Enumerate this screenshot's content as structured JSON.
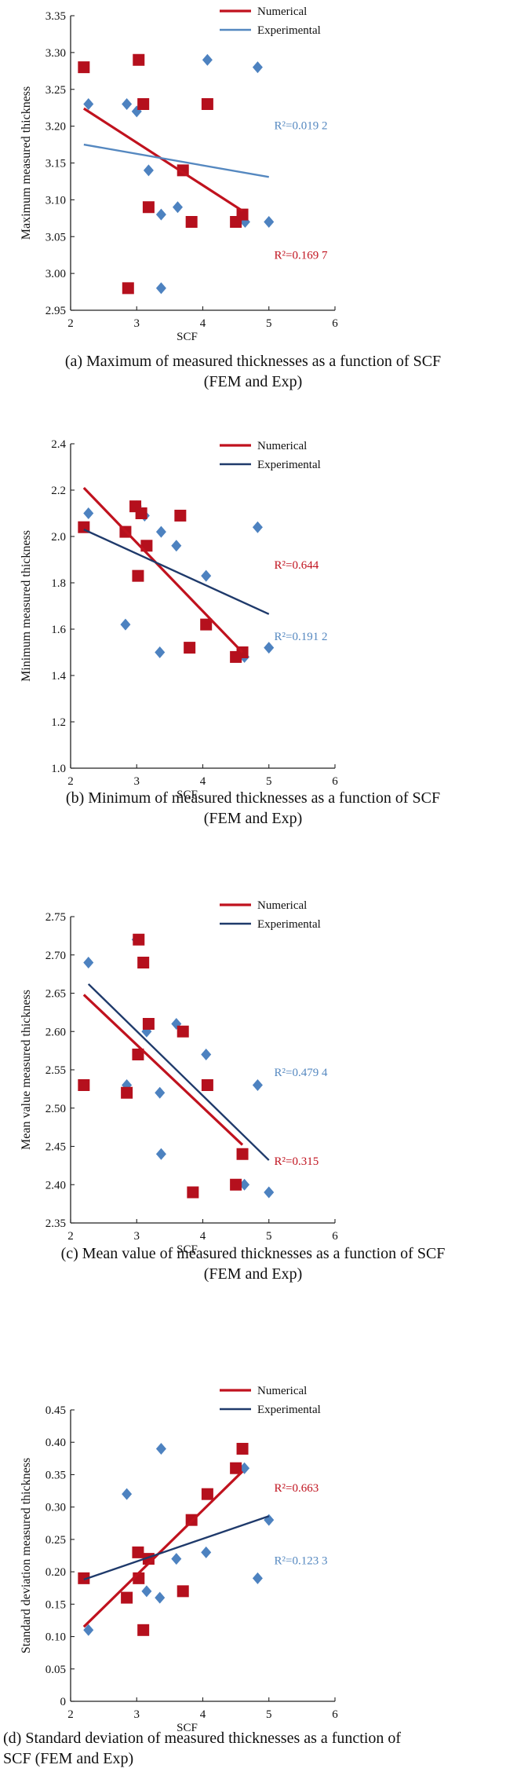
{
  "colors": {
    "numerical": "#c0121e",
    "numerical_marker": "#b5101d",
    "experimental_a": "#5588c0",
    "experimental_dark": "#1f3a6b",
    "experimental_marker": "#4d82c0",
    "axis": "#222222"
  },
  "chart_data": [
    {
      "id": "a",
      "type": "scatter",
      "xlabel": "SCF",
      "ylabel": "Maximum measured thickness",
      "xlim": [
        2,
        6
      ],
      "ylim": [
        2.95,
        3.35
      ],
      "xticks": [
        "2",
        "3",
        "4",
        "5",
        "6"
      ],
      "yticks": [
        "2.95",
        "3.00",
        "3.05",
        "3.10",
        "3.15",
        "3.20",
        "3.25",
        "3.30",
        "3.35"
      ],
      "caption": [
        "(a) Maximum of measured thicknesses as a function of SCF",
        "(FEM and Exp)"
      ],
      "series": [
        {
          "name": "Numerical",
          "marker": "square",
          "color_key": "numerical",
          "points": [
            [
              2.2,
              3.28
            ],
            [
              2.87,
              2.98
            ],
            [
              3.03,
              3.29
            ],
            [
              3.1,
              3.23
            ],
            [
              3.18,
              3.09
            ],
            [
              3.7,
              3.14
            ],
            [
              3.83,
              3.07
            ],
            [
              4.07,
              3.23
            ],
            [
              4.5,
              3.07
            ],
            [
              4.6,
              3.08
            ]
          ],
          "trend": [
            [
              2.2,
              3.224
            ],
            [
              4.6,
              3.085
            ]
          ],
          "r2": "R²=0.169 7"
        },
        {
          "name": "Experimental",
          "marker": "diamond",
          "color_key": "experimental_a",
          "points": [
            [
              2.27,
              3.23
            ],
            [
              2.85,
              3.23
            ],
            [
              3.0,
              3.22
            ],
            [
              3.18,
              3.14
            ],
            [
              3.37,
              3.08
            ],
            [
              3.37,
              2.98
            ],
            [
              3.62,
              3.09
            ],
            [
              4.07,
              3.29
            ],
            [
              4.64,
              3.07
            ],
            [
              4.83,
              3.28
            ],
            [
              5.0,
              3.07
            ]
          ],
          "trend": [
            [
              2.2,
              3.175
            ],
            [
              5.0,
              3.131
            ]
          ],
          "r2": "R²=0.019 2"
        }
      ]
    },
    {
      "id": "b",
      "type": "scatter",
      "xlabel": "SCF",
      "ylabel": "Minimum measured thickness",
      "xlim": [
        2,
        6
      ],
      "ylim": [
        1.0,
        2.4
      ],
      "xticks": [
        "2",
        "3",
        "4",
        "5",
        "6"
      ],
      "yticks": [
        "1.0",
        "1.2",
        "1.4",
        "1.6",
        "1.8",
        "2.0",
        "2.2",
        "2.4"
      ],
      "caption": [
        "(b) Minimum of measured thicknesses as a function of SCF",
        "(FEM and Exp)"
      ],
      "series": [
        {
          "name": "Numerical",
          "marker": "square",
          "color_key": "numerical",
          "points": [
            [
              2.2,
              2.04
            ],
            [
              2.83,
              2.02
            ],
            [
              2.98,
              2.13
            ],
            [
              3.02,
              1.83
            ],
            [
              3.07,
              2.1
            ],
            [
              3.15,
              1.96
            ],
            [
              3.66,
              2.09
            ],
            [
              3.8,
              1.52
            ],
            [
              4.05,
              1.62
            ],
            [
              4.5,
              1.48
            ],
            [
              4.6,
              1.5
            ]
          ],
          "trend": [
            [
              2.2,
              2.21
            ],
            [
              4.6,
              1.5
            ]
          ],
          "r2": "R²=0.644"
        },
        {
          "name": "Experimental",
          "marker": "diamond",
          "color_key": "experimental_dark",
          "label_color_key": "experimental_a",
          "points": [
            [
              2.27,
              2.1
            ],
            [
              2.83,
              1.62
            ],
            [
              3.0,
              2.13
            ],
            [
              3.12,
              2.09
            ],
            [
              3.35,
              1.5
            ],
            [
              3.37,
              2.02
            ],
            [
              3.6,
              1.96
            ],
            [
              4.05,
              1.83
            ],
            [
              4.63,
              1.48
            ],
            [
              4.83,
              2.04
            ],
            [
              5.0,
              1.52
            ]
          ],
          "trend": [
            [
              2.2,
              2.03
            ],
            [
              5.0,
              1.665
            ]
          ],
          "r2": "R²=0.191 2"
        }
      ]
    },
    {
      "id": "c",
      "type": "scatter",
      "xlabel": "SCF",
      "ylabel": "Mean value measured thickness",
      "xlim": [
        2,
        6
      ],
      "ylim": [
        2.35,
        2.75
      ],
      "xticks": [
        "2",
        "3",
        "4",
        "5",
        "6"
      ],
      "yticks": [
        "2.35",
        "2.40",
        "2.45",
        "2.50",
        "2.55",
        "2.60",
        "2.65",
        "2.70",
        "2.75"
      ],
      "caption": [
        "(c) Mean value of measured thicknesses as a function of SCF",
        "(FEM and Exp)"
      ],
      "series": [
        {
          "name": "Numerical",
          "marker": "square",
          "color_key": "numerical",
          "points": [
            [
              2.2,
              2.53
            ],
            [
              2.85,
              2.52
            ],
            [
              3.02,
              2.57
            ],
            [
              3.03,
              2.72
            ],
            [
              3.1,
              2.69
            ],
            [
              3.18,
              2.61
            ],
            [
              3.7,
              2.6
            ],
            [
              3.85,
              2.39
            ],
            [
              4.07,
              2.53
            ],
            [
              4.5,
              2.4
            ],
            [
              4.6,
              2.44
            ]
          ],
          "trend": [
            [
              2.2,
              2.648
            ],
            [
              4.6,
              2.452
            ]
          ],
          "r2": "R²=0.315"
        },
        {
          "name": "Experimental",
          "marker": "diamond",
          "color_key": "experimental_dark",
          "label_color_key": "experimental_a",
          "points": [
            [
              2.27,
              2.69
            ],
            [
              2.85,
              2.53
            ],
            [
              3.0,
              2.72
            ],
            [
              3.15,
              2.6
            ],
            [
              3.35,
              2.52
            ],
            [
              3.37,
              2.44
            ],
            [
              3.6,
              2.61
            ],
            [
              4.05,
              2.57
            ],
            [
              4.63,
              2.4
            ],
            [
              4.83,
              2.53
            ],
            [
              5.0,
              2.39
            ]
          ],
          "trend": [
            [
              2.27,
              2.662
            ],
            [
              5.0,
              2.432
            ]
          ],
          "r2": "R²=0.479 4"
        }
      ]
    },
    {
      "id": "d",
      "type": "scatter",
      "xlabel": "SCF",
      "ylabel": "Standard deviation measured thickness",
      "xlim": [
        2,
        6
      ],
      "ylim": [
        0,
        0.45
      ],
      "xticks": [
        "2",
        "3",
        "4",
        "5",
        "6"
      ],
      "yticks": [
        "0",
        "0.05",
        "0.10",
        "0.15",
        "0.20",
        "0.25",
        "0.30",
        "0.35",
        "0.40",
        "0.45"
      ],
      "caption": [
        "(d) Standard deviation of measured thicknesses as a function of",
        "SCF (FEM and Exp)"
      ],
      "series": [
        {
          "name": "Numerical",
          "marker": "square",
          "color_key": "numerical",
          "points": [
            [
              2.2,
              0.19
            ],
            [
              2.85,
              0.16
            ],
            [
              3.02,
              0.23
            ],
            [
              3.03,
              0.19
            ],
            [
              3.1,
              0.11
            ],
            [
              3.18,
              0.22
            ],
            [
              3.7,
              0.17
            ],
            [
              3.83,
              0.28
            ],
            [
              4.07,
              0.32
            ],
            [
              4.5,
              0.36
            ],
            [
              4.6,
              0.39
            ]
          ],
          "trend": [
            [
              2.2,
              0.115
            ],
            [
              4.6,
              0.355
            ]
          ],
          "r2": "R²=0.663"
        },
        {
          "name": "Experimental",
          "marker": "diamond",
          "color_key": "experimental_dark",
          "label_color_key": "experimental_a",
          "points": [
            [
              2.27,
              0.11
            ],
            [
              2.85,
              0.32
            ],
            [
              3.0,
              0.19
            ],
            [
              3.15,
              0.17
            ],
            [
              3.35,
              0.16
            ],
            [
              3.37,
              0.39
            ],
            [
              3.6,
              0.22
            ],
            [
              4.05,
              0.23
            ],
            [
              4.63,
              0.36
            ],
            [
              4.83,
              0.19
            ],
            [
              5.0,
              0.28
            ]
          ],
          "trend": [
            [
              2.2,
              0.188
            ],
            [
              5.0,
              0.286
            ]
          ],
          "r2": "R²=0.123 3"
        }
      ]
    }
  ]
}
